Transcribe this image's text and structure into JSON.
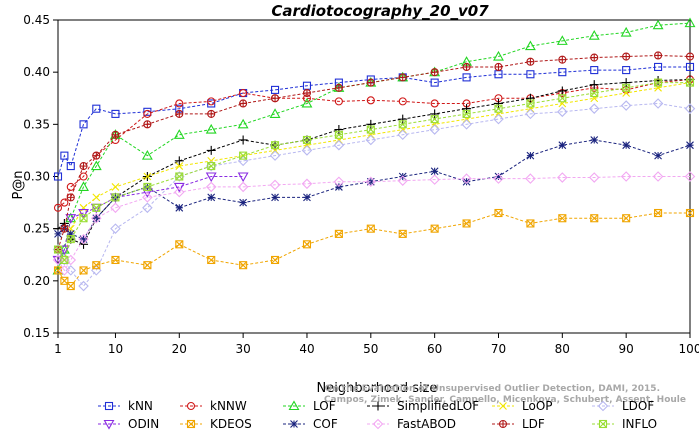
{
  "chart_data": {
    "type": "line",
    "title": "Cardiotocography_20_v07",
    "xlabel": "Neighborhood size",
    "ylabel": "P@n",
    "xlim": [
      1,
      100
    ],
    "ylim": [
      0.15,
      0.45
    ],
    "xticks": [
      1,
      10,
      20,
      30,
      40,
      50,
      60,
      70,
      80,
      90,
      100
    ],
    "yticks": [
      0.15,
      0.2,
      0.25,
      0.3,
      0.35,
      0.4,
      0.45
    ],
    "ytick_labels": [
      "0.15",
      "0.20",
      "0.25",
      "0.30",
      "0.35",
      "0.40",
      "0.45"
    ],
    "grid": false,
    "legend_position": "bottom",
    "watermark": "Campos, Zimek, Sander, Campello, Micenkova, Schubert, Assent, Houle\nOn the Evaluation of Unsupervised Outlier Detection, DAMI, 2015.",
    "series": [
      {
        "name": "kNN",
        "color": "#1f2fd6",
        "marker": "square",
        "x": [
          1,
          2,
          3,
          5,
          7,
          10,
          15,
          20,
          25,
          30,
          35,
          40,
          45,
          50,
          55,
          60,
          65,
          70,
          75,
          80,
          85,
          90,
          95,
          100
        ],
        "values": [
          0.3,
          0.32,
          0.31,
          0.35,
          0.365,
          0.36,
          0.362,
          0.365,
          0.37,
          0.38,
          0.383,
          0.387,
          0.39,
          0.393,
          0.395,
          0.39,
          0.395,
          0.398,
          0.398,
          0.4,
          0.402,
          0.402,
          0.405,
          0.405
        ]
      },
      {
        "name": "kNNW",
        "color": "#d01818",
        "marker": "circle",
        "x": [
          1,
          2,
          3,
          5,
          7,
          10,
          15,
          20,
          25,
          30,
          35,
          40,
          45,
          50,
          55,
          60,
          65,
          70,
          75,
          80,
          85,
          90,
          95,
          100
        ],
        "values": [
          0.27,
          0.275,
          0.29,
          0.3,
          0.32,
          0.335,
          0.36,
          0.37,
          0.372,
          0.38,
          0.375,
          0.375,
          0.372,
          0.373,
          0.372,
          0.37,
          0.37,
          0.375,
          0.375,
          0.38,
          0.385,
          0.383,
          0.39,
          0.393
        ]
      },
      {
        "name": "LOF",
        "color": "#22d622",
        "marker": "triangle",
        "x": [
          1,
          2,
          3,
          5,
          7,
          10,
          15,
          20,
          25,
          30,
          35,
          40,
          45,
          50,
          55,
          60,
          65,
          70,
          75,
          80,
          85,
          90,
          95,
          100
        ],
        "values": [
          0.21,
          0.23,
          0.26,
          0.29,
          0.31,
          0.34,
          0.32,
          0.34,
          0.345,
          0.35,
          0.36,
          0.37,
          0.385,
          0.39,
          0.395,
          0.4,
          0.41,
          0.415,
          0.425,
          0.43,
          0.435,
          0.438,
          0.445,
          0.447
        ]
      },
      {
        "name": "SimplifiedLOF",
        "color": "#000000",
        "marker": "plus",
        "x": [
          1,
          2,
          3,
          5,
          7,
          10,
          15,
          20,
          25,
          30,
          35,
          40,
          45,
          50,
          55,
          60,
          65,
          70,
          75,
          80,
          85,
          90,
          95,
          100
        ],
        "values": [
          0.25,
          0.255,
          0.24,
          0.235,
          0.26,
          0.28,
          0.3,
          0.315,
          0.325,
          0.335,
          0.33,
          0.335,
          0.345,
          0.35,
          0.355,
          0.36,
          0.365,
          0.37,
          0.375,
          0.382,
          0.388,
          0.39,
          0.392,
          0.393
        ]
      },
      {
        "name": "LoOP",
        "color": "#f2e600",
        "marker": "x",
        "x": [
          1,
          2,
          3,
          5,
          7,
          10,
          15,
          20,
          25,
          30,
          35,
          40,
          45,
          50,
          55,
          60,
          65,
          70,
          75,
          80,
          85,
          90,
          95,
          100
        ],
        "values": [
          0.23,
          0.22,
          0.25,
          0.27,
          0.28,
          0.29,
          0.3,
          0.31,
          0.315,
          0.32,
          0.325,
          0.33,
          0.335,
          0.34,
          0.345,
          0.35,
          0.355,
          0.36,
          0.365,
          0.37,
          0.375,
          0.38,
          0.385,
          0.39
        ]
      },
      {
        "name": "LDOF",
        "color": "#b8b8f0",
        "marker": "diamond",
        "x": [
          1,
          2,
          3,
          5,
          7,
          10,
          15,
          20,
          25,
          30,
          35,
          40,
          45,
          50,
          55,
          60,
          65,
          70,
          75,
          80,
          85,
          90,
          95,
          100
        ],
        "values": [
          0.23,
          0.22,
          0.21,
          0.195,
          0.21,
          0.25,
          0.27,
          0.3,
          0.31,
          0.315,
          0.32,
          0.325,
          0.33,
          0.335,
          0.34,
          0.345,
          0.35,
          0.355,
          0.36,
          0.362,
          0.365,
          0.368,
          0.37,
          0.365
        ]
      },
      {
        "name": "ODIN",
        "color": "#8a2be2",
        "marker": "triangle-down",
        "x": [
          1,
          2,
          3,
          5,
          7,
          10,
          15,
          20,
          25,
          30
        ],
        "values": [
          0.22,
          0.23,
          0.26,
          0.265,
          0.27,
          0.28,
          0.285,
          0.29,
          0.3,
          0.3
        ]
      },
      {
        "name": "KDEOS",
        "color": "#f0a500",
        "marker": "square-x",
        "x": [
          1,
          2,
          3,
          5,
          7,
          10,
          15,
          20,
          25,
          30,
          35,
          40,
          45,
          50,
          55,
          60,
          65,
          70,
          75,
          80,
          85,
          90,
          95,
          100
        ],
        "values": [
          0.21,
          0.2,
          0.195,
          0.21,
          0.215,
          0.22,
          0.215,
          0.235,
          0.22,
          0.215,
          0.22,
          0.235,
          0.245,
          0.25,
          0.245,
          0.25,
          0.255,
          0.265,
          0.255,
          0.26,
          0.26,
          0.26,
          0.265,
          0.265
        ]
      },
      {
        "name": "COF",
        "color": "#1a237e",
        "marker": "asterisk",
        "x": [
          1,
          2,
          3,
          5,
          7,
          10,
          15,
          20,
          25,
          30,
          35,
          40,
          45,
          50,
          55,
          60,
          65,
          70,
          75,
          80,
          85,
          90,
          95,
          100
        ],
        "values": [
          0.245,
          0.25,
          0.245,
          0.24,
          0.26,
          0.28,
          0.29,
          0.27,
          0.28,
          0.275,
          0.28,
          0.28,
          0.29,
          0.295,
          0.3,
          0.305,
          0.295,
          0.3,
          0.32,
          0.33,
          0.335,
          0.33,
          0.32,
          0.33
        ]
      },
      {
        "name": "FastABOD",
        "color": "#f2a8f2",
        "marker": "diamond",
        "x": [
          1,
          2,
          3,
          5,
          7,
          10,
          15,
          20,
          25,
          30,
          35,
          40,
          45,
          50,
          55,
          60,
          65,
          70,
          75,
          80,
          85,
          90,
          95,
          100
        ],
        "values": [
          0.22,
          0.21,
          0.22,
          0.24,
          0.26,
          0.27,
          0.28,
          0.285,
          0.29,
          0.29,
          0.292,
          0.293,
          0.295,
          0.295,
          0.296,
          0.297,
          0.298,
          0.298,
          0.298,
          0.299,
          0.299,
          0.3,
          0.3,
          0.3
        ]
      },
      {
        "name": "LDF",
        "color": "#b01818",
        "marker": "circle-plus",
        "x": [
          1,
          2,
          3,
          5,
          7,
          10,
          15,
          20,
          25,
          30,
          35,
          40,
          45,
          50,
          55,
          60,
          65,
          70,
          75,
          80,
          85,
          90,
          95,
          100
        ],
        "values": [
          0.23,
          0.25,
          0.28,
          0.31,
          0.32,
          0.34,
          0.35,
          0.36,
          0.36,
          0.37,
          0.375,
          0.38,
          0.385,
          0.39,
          0.395,
          0.4,
          0.405,
          0.405,
          0.41,
          0.412,
          0.414,
          0.415,
          0.416,
          0.415
        ]
      },
      {
        "name": "INFLO",
        "color": "#99dd33",
        "marker": "square-x",
        "x": [
          1,
          2,
          3,
          5,
          7,
          10,
          15,
          20,
          25,
          30,
          35,
          40,
          45,
          50,
          55,
          60,
          65,
          70,
          75,
          80,
          85,
          90,
          95,
          100
        ],
        "values": [
          0.23,
          0.22,
          0.24,
          0.26,
          0.27,
          0.28,
          0.29,
          0.3,
          0.31,
          0.32,
          0.33,
          0.335,
          0.34,
          0.345,
          0.35,
          0.355,
          0.36,
          0.365,
          0.37,
          0.375,
          0.38,
          0.385,
          0.39,
          0.39
        ]
      }
    ]
  }
}
